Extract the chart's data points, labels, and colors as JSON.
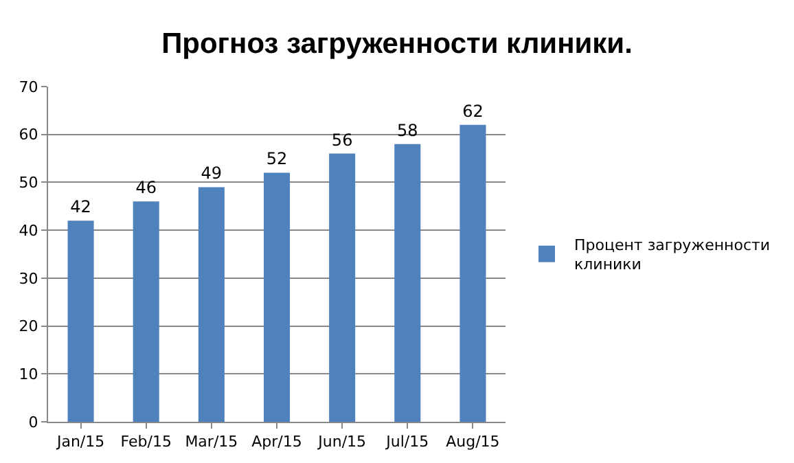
{
  "chart_data": {
    "type": "bar",
    "title": "Прогноз загруженности клиники.",
    "categories": [
      "Jan/15",
      "Feb/15",
      "Mar/15",
      "Apr/15",
      "Jun/15",
      "Jul/15",
      "Aug/15"
    ],
    "series": [
      {
        "name": "Процент загруженности клиники",
        "color": "#4f81bd",
        "values": [
          42,
          46,
          49,
          52,
          56,
          58,
          62
        ]
      }
    ],
    "ylim": [
      0,
      70
    ],
    "yticks": [
      0,
      10,
      20,
      30,
      40,
      50,
      60,
      70
    ],
    "grid": "y",
    "legend": "right",
    "data_labels": true
  }
}
